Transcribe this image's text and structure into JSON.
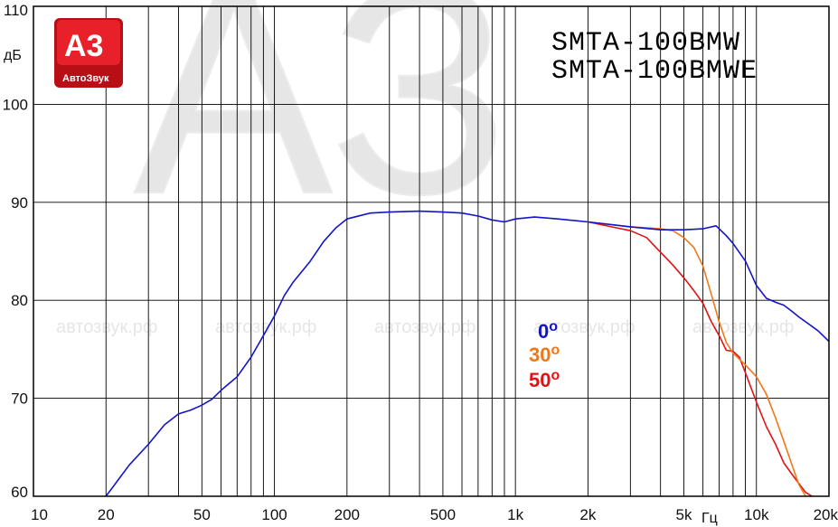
{
  "chart_data": {
    "type": "line",
    "title": [
      "SMTA-100BMW",
      "SMTA-100BMWE"
    ],
    "ylabel": "дБ",
    "xlabel": "Гц",
    "x_scale": "log",
    "xlim": [
      10,
      20000
    ],
    "ylim": [
      60,
      110
    ],
    "grid": true,
    "x_ticks": [
      {
        "v": 10,
        "label": "10"
      },
      {
        "v": 20,
        "label": "20"
      },
      {
        "v": 50,
        "label": "50"
      },
      {
        "v": 100,
        "label": "100"
      },
      {
        "v": 200,
        "label": "200"
      },
      {
        "v": 500,
        "label": "500"
      },
      {
        "v": 1000,
        "label": "1k"
      },
      {
        "v": 2000,
        "label": "2k"
      },
      {
        "v": 5000,
        "label": "5k"
      },
      {
        "v": 10000,
        "label": "10k"
      },
      {
        "v": 20000,
        "label": "20k"
      }
    ],
    "y_ticks": [
      {
        "v": 60,
        "label": "60"
      },
      {
        "v": 70,
        "label": "70"
      },
      {
        "v": 80,
        "label": "80"
      },
      {
        "v": 90,
        "label": "90"
      },
      {
        "v": 100,
        "label": "100"
      },
      {
        "v": 110,
        "label": "110"
      }
    ],
    "series": [
      {
        "name": "0°",
        "color": "#1414c8",
        "points": [
          [
            20,
            60.0
          ],
          [
            25,
            63.2
          ],
          [
            30,
            65.3
          ],
          [
            35,
            67.3
          ],
          [
            40,
            68.4
          ],
          [
            45,
            68.8
          ],
          [
            50,
            69.3
          ],
          [
            55,
            69.9
          ],
          [
            60,
            70.8
          ],
          [
            70,
            72.2
          ],
          [
            80,
            74.2
          ],
          [
            90,
            76.4
          ],
          [
            100,
            78.4
          ],
          [
            110,
            80.5
          ],
          [
            120,
            81.9
          ],
          [
            140,
            83.9
          ],
          [
            160,
            86.0
          ],
          [
            180,
            87.4
          ],
          [
            200,
            88.3
          ],
          [
            250,
            88.9
          ],
          [
            300,
            89.0
          ],
          [
            400,
            89.1
          ],
          [
            500,
            89.0
          ],
          [
            600,
            88.9
          ],
          [
            700,
            88.6
          ],
          [
            800,
            88.2
          ],
          [
            900,
            88.0
          ],
          [
            1000,
            88.3
          ],
          [
            1200,
            88.5
          ],
          [
            1500,
            88.3
          ],
          [
            2000,
            88.0
          ],
          [
            3000,
            87.5
          ],
          [
            4000,
            87.2
          ],
          [
            5000,
            87.2
          ],
          [
            6000,
            87.3
          ],
          [
            6800,
            87.6
          ],
          [
            7500,
            86.6
          ],
          [
            8000,
            85.8
          ],
          [
            9000,
            84.0
          ],
          [
            10000,
            81.5
          ],
          [
            11000,
            80.2
          ],
          [
            12000,
            79.8
          ],
          [
            13000,
            79.5
          ],
          [
            14000,
            78.9
          ],
          [
            15000,
            78.3
          ],
          [
            16000,
            77.8
          ],
          [
            18000,
            76.9
          ],
          [
            20000,
            75.8
          ]
        ]
      },
      {
        "name": "30°",
        "color": "#f07818",
        "points": [
          [
            2000,
            88.0
          ],
          [
            3000,
            87.5
          ],
          [
            4000,
            87.3
          ],
          [
            4500,
            87.1
          ],
          [
            5000,
            86.4
          ],
          [
            5500,
            85.4
          ],
          [
            6000,
            83.5
          ],
          [
            6500,
            80.6
          ],
          [
            7000,
            77.8
          ],
          [
            7500,
            75.7
          ],
          [
            8000,
            74.6
          ],
          [
            9000,
            73.4
          ],
          [
            10000,
            72.2
          ],
          [
            11000,
            70.4
          ],
          [
            12000,
            68.0
          ],
          [
            13000,
            65.6
          ],
          [
            14000,
            63.3
          ],
          [
            15000,
            61.2
          ],
          [
            16000,
            60.0
          ]
        ]
      },
      {
        "name": "50°",
        "color": "#e01414",
        "points": [
          [
            2000,
            88.0
          ],
          [
            2500,
            87.5
          ],
          [
            3000,
            87.1
          ],
          [
            3500,
            86.4
          ],
          [
            4000,
            84.9
          ],
          [
            4500,
            83.6
          ],
          [
            5000,
            82.3
          ],
          [
            5500,
            81.0
          ],
          [
            6000,
            79.7
          ],
          [
            6500,
            77.8
          ],
          [
            7000,
            76.4
          ],
          [
            7500,
            74.9
          ],
          [
            8000,
            74.8
          ],
          [
            8500,
            74.2
          ],
          [
            9000,
            72.6
          ],
          [
            10000,
            69.6
          ],
          [
            11000,
            67.1
          ],
          [
            12000,
            65.3
          ],
          [
            13000,
            63.4
          ],
          [
            14000,
            62.3
          ],
          [
            15000,
            61.3
          ],
          [
            16000,
            60.4
          ],
          [
            17000,
            60.0
          ]
        ]
      }
    ]
  },
  "legend": {
    "s0": {
      "num": "0",
      "sup": "o",
      "color": "#1414c8"
    },
    "s30": {
      "num": "30",
      "sup": "o",
      "color": "#f07818"
    },
    "s50": {
      "num": "50",
      "sup": "o",
      "color": "#e01414"
    }
  },
  "logo": {
    "big": "А3",
    "sub": "АвтоЗвук",
    "color": "#d8141e"
  },
  "watermark": {
    "text": "автозвук.рф",
    "logo": "АЗ"
  }
}
